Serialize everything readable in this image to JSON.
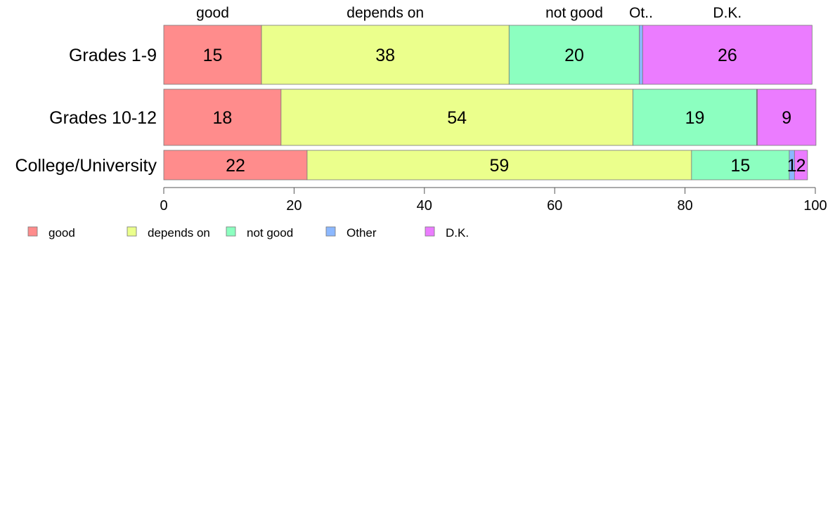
{
  "chart_data": {
    "type": "bar",
    "orientation": "horizontal",
    "stacked": true,
    "categories": [
      "Grades 1-9",
      "Grades 10-12",
      "College/University"
    ],
    "series": [
      {
        "name": "good",
        "color": "#FF8C8C",
        "values": [
          15,
          18,
          22
        ]
      },
      {
        "name": "depends on",
        "color": "#EBFF8C",
        "values": [
          38,
          54,
          59
        ]
      },
      {
        "name": "not good",
        "color": "#8CFFC0",
        "values": [
          20,
          19,
          15
        ]
      },
      {
        "name": "Other",
        "color": "#8CB8FF",
        "values": [
          0.5,
          0.1,
          0.8
        ]
      },
      {
        "name": "D.K.",
        "color": "#EB7CFF",
        "values": [
          26,
          9,
          2
        ]
      }
    ],
    "segment_labels": [
      [
        "15",
        "38",
        "20",
        "",
        "26"
      ],
      [
        "18",
        "54",
        "19",
        "",
        "9"
      ],
      [
        "22",
        "59",
        "15",
        "1",
        "2"
      ]
    ],
    "top_labels": [
      "good",
      "depends on",
      "not good",
      "Ot..",
      "D.K."
    ],
    "xlim": [
      0,
      100
    ],
    "xticks": [
      0,
      20,
      40,
      60,
      80,
      100
    ],
    "legend": {
      "placement": "bottom-left",
      "labels": [
        "good",
        "depends on",
        "not good",
        "Other",
        "D.K."
      ]
    },
    "grid": false
  }
}
